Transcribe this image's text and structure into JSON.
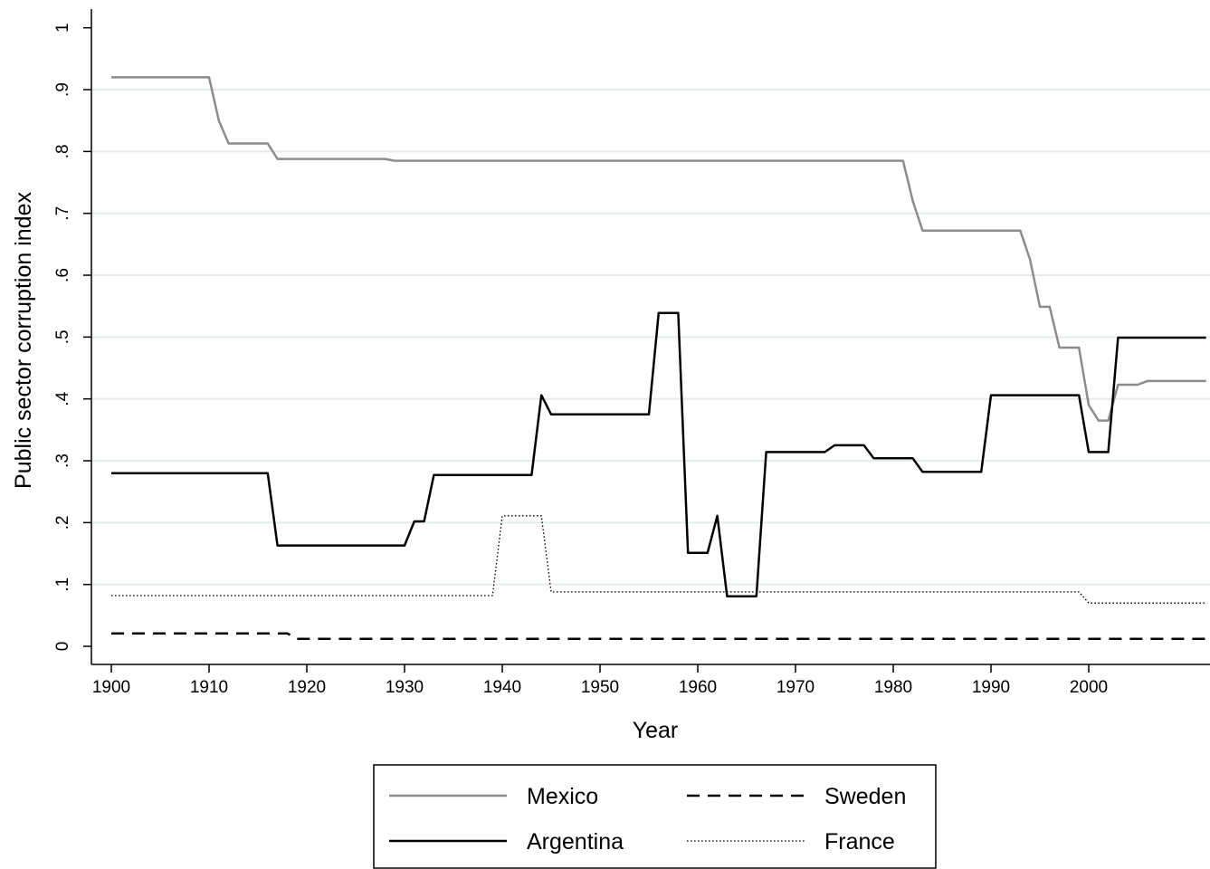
{
  "chart_data": {
    "type": "line",
    "xlabel": "Year",
    "ylabel": "Public sector corruption index",
    "xlim": [
      1898,
      2012
    ],
    "ylim": [
      -0.03,
      1.03
    ],
    "x_ticks": [
      1900,
      1910,
      1920,
      1930,
      1940,
      1950,
      1960,
      1970,
      1980,
      1990,
      2000
    ],
    "y_ticks": [
      0,
      0.1,
      0.2,
      0.3,
      0.4,
      0.5,
      0.6,
      0.7,
      0.8,
      0.9,
      1
    ],
    "y_tick_labels": [
      "0",
      ".1",
      ".2",
      ".3",
      ".4",
      ".5",
      ".6",
      ".7",
      ".8",
      ".9",
      "1"
    ],
    "x_tick_labels": [
      "1900",
      "1910",
      "1920",
      "1930",
      "1940",
      "1950",
      "1960",
      "1970",
      "1980",
      "1990",
      "2000"
    ],
    "grid": "horizontal",
    "legend_placement": "bottom",
    "series": [
      {
        "name": "Mexico",
        "color": "#8c8c8c",
        "style": "solid",
        "points": [
          [
            1900,
            0.92
          ],
          [
            1910,
            0.92
          ],
          [
            1911,
            0.85
          ],
          [
            1912,
            0.813
          ],
          [
            1916,
            0.813
          ],
          [
            1917,
            0.788
          ],
          [
            1928,
            0.788
          ],
          [
            1929,
            0.785
          ],
          [
            1981,
            0.785
          ],
          [
            1982,
            0.72
          ],
          [
            1983,
            0.672
          ],
          [
            1993,
            0.672
          ],
          [
            1994,
            0.625
          ],
          [
            1995,
            0.549
          ],
          [
            1996,
            0.549
          ],
          [
            1997,
            0.483
          ],
          [
            1999,
            0.483
          ],
          [
            2000,
            0.39
          ],
          [
            2001,
            0.365
          ],
          [
            2002,
            0.365
          ],
          [
            2003,
            0.423
          ],
          [
            2005,
            0.423
          ],
          [
            2006,
            0.429
          ],
          [
            2012,
            0.429
          ]
        ]
      },
      {
        "name": "Argentina",
        "color": "#000000",
        "style": "solid",
        "points": [
          [
            1900,
            0.28
          ],
          [
            1916,
            0.28
          ],
          [
            1917,
            0.163
          ],
          [
            1930,
            0.163
          ],
          [
            1931,
            0.202
          ],
          [
            1932,
            0.202
          ],
          [
            1933,
            0.277
          ],
          [
            1943,
            0.277
          ],
          [
            1944,
            0.406
          ],
          [
            1945,
            0.375
          ],
          [
            1955,
            0.375
          ],
          [
            1956,
            0.539
          ],
          [
            1958,
            0.539
          ],
          [
            1959,
            0.151
          ],
          [
            1961,
            0.151
          ],
          [
            1962,
            0.211
          ],
          [
            1963,
            0.081
          ],
          [
            1966,
            0.081
          ],
          [
            1967,
            0.314
          ],
          [
            1973,
            0.314
          ],
          [
            1974,
            0.325
          ],
          [
            1977,
            0.325
          ],
          [
            1978,
            0.304
          ],
          [
            1982,
            0.304
          ],
          [
            1983,
            0.282
          ],
          [
            1989,
            0.282
          ],
          [
            1990,
            0.406
          ],
          [
            1999,
            0.406
          ],
          [
            2000,
            0.314
          ],
          [
            2002,
            0.314
          ],
          [
            2003,
            0.499
          ],
          [
            2012,
            0.499
          ]
        ]
      },
      {
        "name": "Sweden",
        "color": "#000000",
        "style": "dashed",
        "points": [
          [
            1900,
            0.021
          ],
          [
            1918,
            0.021
          ],
          [
            1919,
            0.012
          ],
          [
            2012,
            0.012
          ]
        ]
      },
      {
        "name": "France",
        "color": "#000000",
        "style": "dotted",
        "points": [
          [
            1900,
            0.082
          ],
          [
            1939,
            0.082
          ],
          [
            1940,
            0.211
          ],
          [
            1944,
            0.211
          ],
          [
            1945,
            0.088
          ],
          [
            1999,
            0.088
          ],
          [
            2000,
            0.07
          ],
          [
            2012,
            0.07
          ]
        ]
      }
    ],
    "legend": [
      {
        "series": "Mexico",
        "label": "Mexico"
      },
      {
        "series": "Sweden",
        "label": "Sweden"
      },
      {
        "series": "Argentina",
        "label": "Argentina"
      },
      {
        "series": "France",
        "label": "France"
      }
    ]
  }
}
